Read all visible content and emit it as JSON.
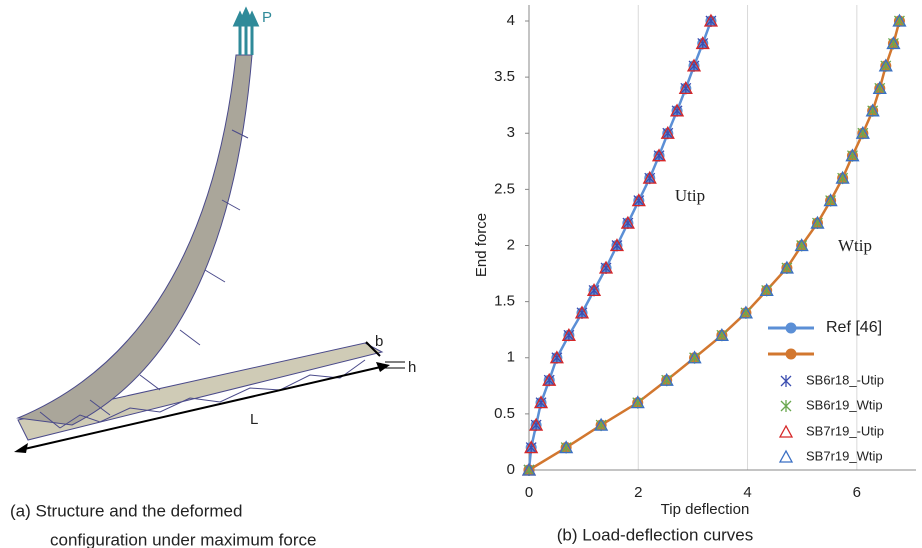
{
  "left_figure": {
    "labels": {
      "load": "P",
      "width": "b",
      "height": "h",
      "length": "L"
    },
    "caption": [
      "(a) Structure and the deformed",
      "configuration under maximum force"
    ]
  },
  "chart_data": {
    "type": "line",
    "caption": "(b) Load-deflection curves",
    "x_label": "Tip deflection",
    "y_label": "End force",
    "annotations": [
      "Utip",
      "Wtip"
    ],
    "xlim": [
      0,
      6.9
    ],
    "ylim": [
      0,
      4
    ],
    "xticks": [
      0,
      2,
      4,
      6
    ],
    "yticks": [
      0,
      0.5,
      1,
      1.5,
      2,
      2.5,
      3,
      3.5,
      4
    ],
    "grid": true,
    "series": [
      {
        "name": "Ref [46]",
        "color": "#5b8fd6",
        "marker": "circle",
        "line": true,
        "x": [
          0,
          0.04,
          0.13,
          0.22,
          0.37,
          0.51,
          0.73,
          0.97,
          1.19,
          1.41,
          1.61,
          1.81,
          2.01,
          2.21,
          2.38,
          2.54,
          2.71,
          2.87,
          3.02,
          3.18,
          3.33
        ],
        "values": [
          0,
          0.2,
          0.4,
          0.6,
          0.8,
          1,
          1.2,
          1.4,
          1.6,
          1.8,
          2,
          2.2,
          2.4,
          2.6,
          2.8,
          3,
          3.2,
          3.4,
          3.6,
          3.8,
          4
        ]
      },
      {
        "name": null,
        "color": "#d2772f",
        "marker": "circle",
        "line": true,
        "x": [
          0,
          0.68,
          1.32,
          1.99,
          2.52,
          3.03,
          3.53,
          3.97,
          4.35,
          4.72,
          4.99,
          5.28,
          5.52,
          5.74,
          5.92,
          6.11,
          6.29,
          6.42,
          6.53,
          6.67,
          6.78
        ],
        "values": [
          0,
          0.2,
          0.4,
          0.6,
          0.8,
          1,
          1.2,
          1.4,
          1.6,
          1.8,
          2,
          2.2,
          2.4,
          2.6,
          2.8,
          3,
          3.2,
          3.4,
          3.6,
          3.8,
          4
        ]
      },
      {
        "name": "SB6r18_-Utip",
        "color": "#3b4db0",
        "marker": "star",
        "line": false,
        "x": [
          0,
          0.04,
          0.13,
          0.22,
          0.37,
          0.51,
          0.73,
          0.97,
          1.19,
          1.41,
          1.61,
          1.81,
          2.01,
          2.21,
          2.38,
          2.54,
          2.71,
          2.87,
          3.02,
          3.18,
          3.33
        ],
        "values": [
          0,
          0.2,
          0.4,
          0.6,
          0.8,
          1,
          1.2,
          1.4,
          1.6,
          1.8,
          2,
          2.2,
          2.4,
          2.6,
          2.8,
          3,
          3.2,
          3.4,
          3.6,
          3.8,
          4
        ]
      },
      {
        "name": "SB6r19_Wtip",
        "color": "#6aa84f",
        "marker": "star",
        "line": false,
        "x": [
          0,
          0.68,
          1.32,
          1.99,
          2.52,
          3.03,
          3.53,
          3.97,
          4.35,
          4.72,
          4.99,
          5.28,
          5.52,
          5.74,
          5.92,
          6.11,
          6.29,
          6.42,
          6.53,
          6.67,
          6.78
        ],
        "values": [
          0,
          0.2,
          0.4,
          0.6,
          0.8,
          1,
          1.2,
          1.4,
          1.6,
          1.8,
          2,
          2.2,
          2.4,
          2.6,
          2.8,
          3,
          3.2,
          3.4,
          3.6,
          3.8,
          4
        ]
      },
      {
        "name": "SB7r19_-Utip",
        "color": "#d62728",
        "marker": "triangle",
        "line": false,
        "x": [
          0,
          0.04,
          0.13,
          0.22,
          0.37,
          0.51,
          0.73,
          0.97,
          1.19,
          1.41,
          1.61,
          1.81,
          2.01,
          2.21,
          2.38,
          2.54,
          2.71,
          2.87,
          3.02,
          3.18,
          3.33
        ],
        "values": [
          0,
          0.2,
          0.4,
          0.6,
          0.8,
          1,
          1.2,
          1.4,
          1.6,
          1.8,
          2,
          2.2,
          2.4,
          2.6,
          2.8,
          3,
          3.2,
          3.4,
          3.6,
          3.8,
          4
        ]
      },
      {
        "name": "SB7r19_Wtip",
        "color": "#3a6fc4",
        "marker": "triangle",
        "line": false,
        "x": [
          0,
          0.68,
          1.32,
          1.99,
          2.52,
          3.03,
          3.53,
          3.97,
          4.35,
          4.72,
          4.99,
          5.28,
          5.52,
          5.74,
          5.92,
          6.11,
          6.29,
          6.42,
          6.53,
          6.67,
          6.78
        ],
        "values": [
          0,
          0.2,
          0.4,
          0.6,
          0.8,
          1,
          1.2,
          1.4,
          1.6,
          1.8,
          2,
          2.2,
          2.4,
          2.6,
          2.8,
          3,
          3.2,
          3.4,
          3.6,
          3.8,
          4
        ]
      }
    ]
  }
}
